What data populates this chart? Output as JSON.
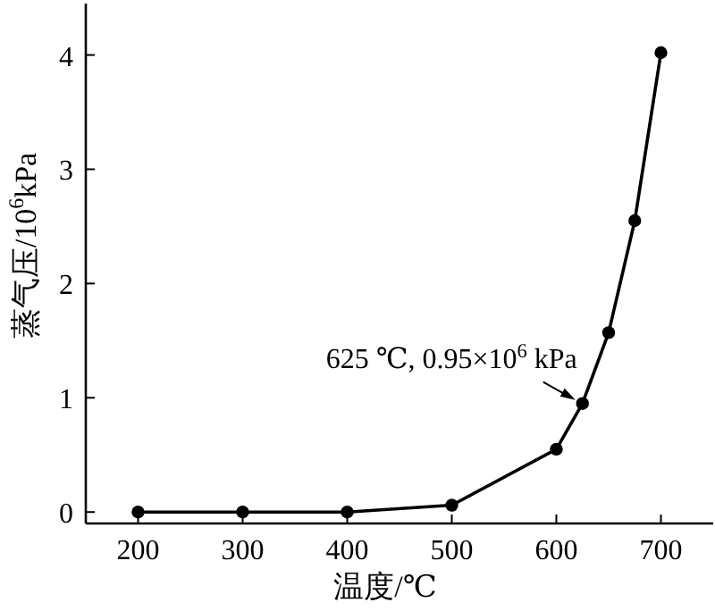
{
  "chart_data": {
    "type": "line",
    "xlabel": "温度/℃",
    "ylabel": "蒸气压/10$^{6}$kPa",
    "x": [
      200,
      300,
      400,
      500,
      600,
      625,
      650,
      675,
      700
    ],
    "series": [
      {
        "color": "#000000",
        "values": [
          0,
          0,
          0,
          0.06,
          0.55,
          0.95,
          1.57,
          2.55,
          4.02
        ]
      }
    ],
    "xlim": [
      150,
      750
    ],
    "ylim": [
      -0.1,
      4.45
    ],
    "xticks": [
      200,
      300,
      400,
      500,
      600,
      700
    ],
    "yticks": [
      0,
      1,
      2,
      3,
      4
    ],
    "marker": "circle",
    "line_style": "solid",
    "grid": false,
    "annotations": [
      {
        "text": "625 ℃, 0.95×10$^{6}$ kPa",
        "x": 625,
        "y": 0.95
      }
    ]
  }
}
